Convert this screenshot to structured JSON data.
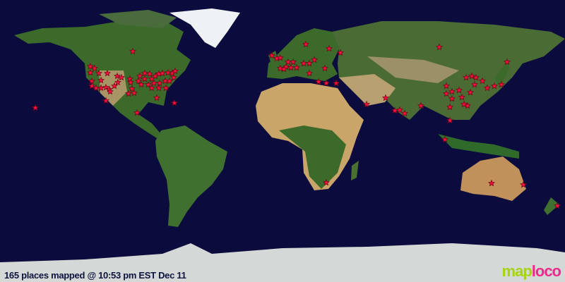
{
  "status_text": "165 places mapped @ 10:53 pm EST Dec 11",
  "logo": {
    "part1": "map",
    "part2": "loco"
  },
  "colors": {
    "ocean": "#0b0b3d",
    "marker": "#ff1040",
    "marker_outline": "#7a0018",
    "land_green": "#3e6b2a",
    "land_desert": "#c9a56a",
    "ice": "#e8eef2",
    "logo_green": "#a6d415",
    "logo_pink": "#ec2a8c"
  },
  "projection": "equirectangular",
  "markers": [
    [
      47.6,
      -122.4
    ],
    [
      46.4,
      -119.7
    ],
    [
      43.6,
      -122.4
    ],
    [
      43.2,
      -117
    ],
    [
      43.2,
      -111.6
    ],
    [
      38.2,
      -121.5
    ],
    [
      38.7,
      -115.6
    ],
    [
      35.1,
      -121.5
    ],
    [
      33.8,
      -118.8
    ],
    [
      33.8,
      -115.6
    ],
    [
      34.2,
      -112.5
    ],
    [
      32.9,
      -110.3
    ],
    [
      41.4,
      -105.3
    ],
    [
      40.5,
      -102.6
    ],
    [
      37.4,
      -104.9
    ],
    [
      35.1,
      -107.1
    ],
    [
      31.5,
      -109.8
    ],
    [
      57.2,
      -95.4
    ],
    [
      39.6,
      -97.2
    ],
    [
      37.4,
      -96.8
    ],
    [
      33.3,
      -95.9
    ],
    [
      30.2,
      -98.1
    ],
    [
      30.6,
      -94.5
    ],
    [
      38.3,
      -91.8
    ],
    [
      41.4,
      -90.9
    ],
    [
      43.2,
      -87.8
    ],
    [
      42.8,
      -84.6
    ],
    [
      39.6,
      -87.8
    ],
    [
      39.6,
      -83.3
    ],
    [
      41.4,
      -81
    ],
    [
      42.8,
      -78.8
    ],
    [
      43.2,
      -76.5
    ],
    [
      43.6,
      -72.9
    ],
    [
      43.2,
      -70.2
    ],
    [
      44.6,
      -68.4
    ],
    [
      36,
      -90
    ],
    [
      36,
      -85.5
    ],
    [
      36.9,
      -81.9
    ],
    [
      36.9,
      -78.3
    ],
    [
      38.3,
      -74.7
    ],
    [
      38.3,
      -72
    ],
    [
      40.5,
      -69.3
    ],
    [
      33.8,
      -83.3
    ],
    [
      33.8,
      -78.8
    ],
    [
      33.8,
      -74.3
    ],
    [
      24.3,
      -68.9
    ],
    [
      27.5,
      -80.1
    ],
    [
      18,
      -92.7
    ],
    [
      25.7,
      -112.5
    ],
    [
      21.2,
      -157.5
    ],
    [
      54.5,
      -6.8
    ],
    [
      52.7,
      -3.6
    ],
    [
      53.1,
      -1.4
    ],
    [
      50.4,
      3.6
    ],
    [
      50.4,
      6.8
    ],
    [
      47.3,
      2.3
    ],
    [
      46.8,
      5.4
    ],
    [
      46.8,
      9
    ],
    [
      46.4,
      -1.4
    ],
    [
      45.9,
      0.9
    ],
    [
      49.5,
      13.5
    ],
    [
      49.5,
      17.1
    ],
    [
      51.8,
      20.3
    ],
    [
      46.4,
      27
    ],
    [
      61.7,
      14.9
    ],
    [
      59,
      29.7
    ],
    [
      56.3,
      36.9
    ],
    [
      43.2,
      17.1
    ],
    [
      37.8,
      23
    ],
    [
      36.9,
      27.9
    ],
    [
      36.9,
      34.2
    ],
    [
      23.4,
      53.6
    ],
    [
      27.5,
      65.7
    ],
    [
      19.4,
      71.6
    ],
    [
      19.8,
      74.7
    ],
    [
      17.6,
      77.9
    ],
    [
      22.5,
      88.2
    ],
    [
      59.9,
      99.9
    ],
    [
      35.1,
      104.4
    ],
    [
      31.5,
      108
    ],
    [
      32.4,
      112.5
    ],
    [
      40.5,
      117
    ],
    [
      41.4,
      120.6
    ],
    [
      40.5,
      123.3
    ],
    [
      36,
      122.4
    ],
    [
      31,
      119.7
    ],
    [
      27.9,
      114.3
    ],
    [
      27,
      108
    ],
    [
      30.2,
      104.4
    ],
    [
      23.4,
      115.7
    ],
    [
      21.6,
      106.7
    ],
    [
      22.5,
      117.9
    ],
    [
      35.1,
      135
    ],
    [
      36,
      139.5
    ],
    [
      38.3,
      127.4
    ],
    [
      33.8,
      130.5
    ],
    [
      50.4,
      143.1
    ],
    [
      13.1,
      106.7
    ],
    [
      0.9,
      103.5
    ],
    [
      -27,
      133.2
    ],
    [
      -27.9,
      153.5
    ],
    [
      -41.4,
      175.1
    ],
    [
      -26.6,
      27.9
    ]
  ]
}
